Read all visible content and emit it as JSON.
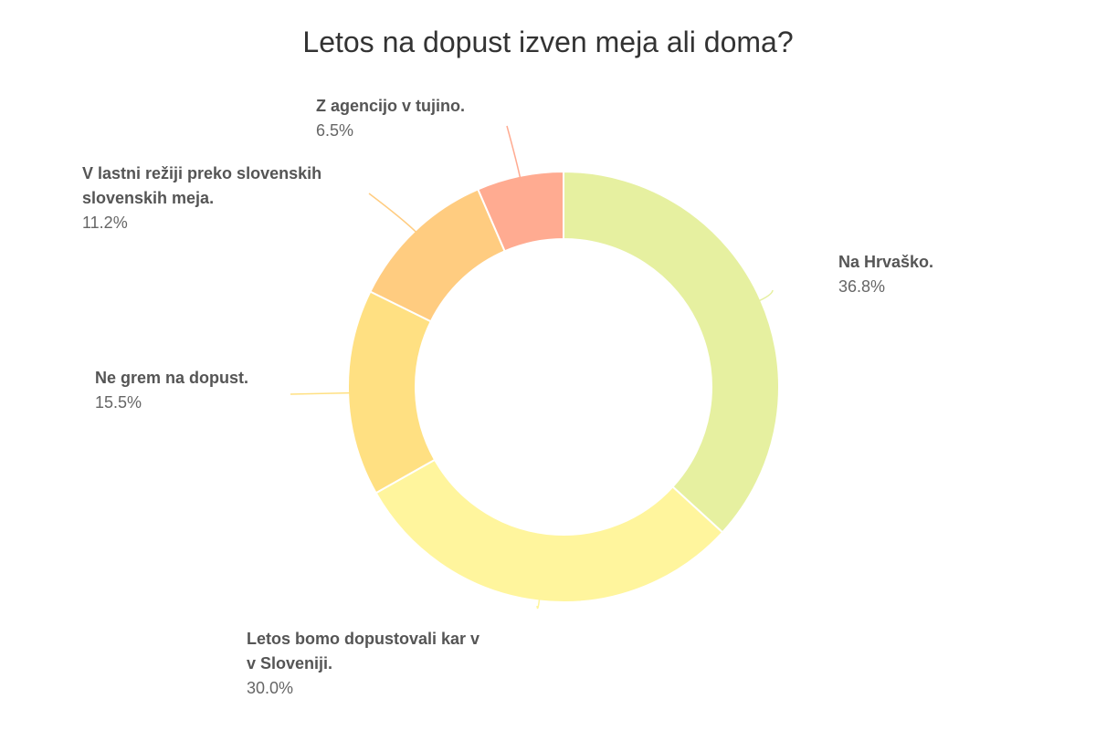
{
  "chart_data": {
    "type": "pie",
    "variant": "donut",
    "title": "Letos na dopust izven meja ali doma?",
    "legend": "none",
    "slices": [
      {
        "label": [
          "Na Hrvaško."
        ],
        "value": 36.8,
        "value_label": "36.8%",
        "color": "#e6f0a0"
      },
      {
        "label": [
          "Letos bomo dopustovali kar v",
          "v Sloveniji."
        ],
        "value": 30.0,
        "value_label": "30.0%",
        "color": "#fff59d"
      },
      {
        "label": [
          "Ne grem na dopust."
        ],
        "value": 15.5,
        "value_label": "15.5%",
        "color": "#ffe082"
      },
      {
        "label": [
          "V lastni režiji preko slovenskih",
          "slovenskih meja."
        ],
        "value": 11.2,
        "value_label": "11.2%",
        "color": "#ffcc80"
      },
      {
        "label": [
          "Z agencijo v tujino."
        ],
        "value": 6.5,
        "value_label": "6.5%",
        "color": "#ffab91"
      }
    ]
  }
}
